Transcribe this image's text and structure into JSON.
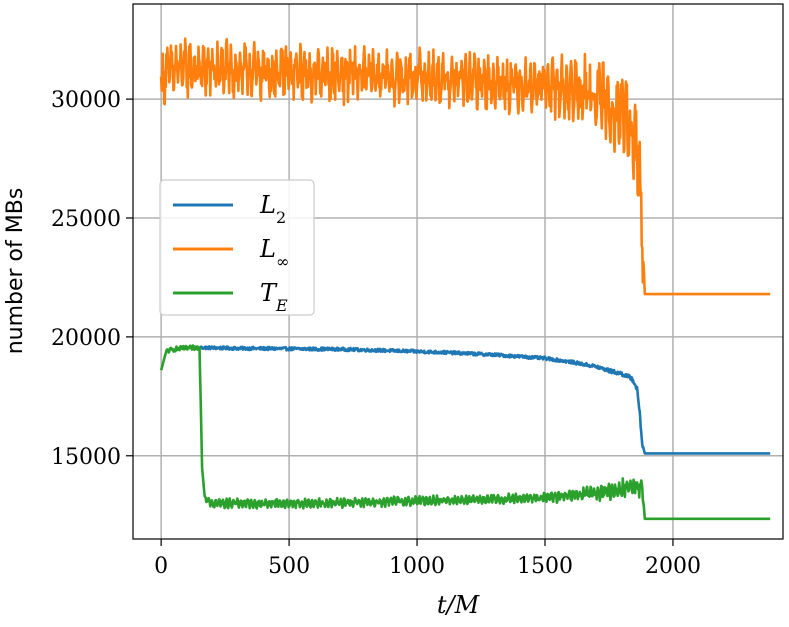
{
  "chart_data": {
    "type": "line",
    "title": "",
    "xlabel": "t/M",
    "ylabel": "number of MBs",
    "xlim": [
      -110,
      2430
    ],
    "ylim": [
      11500,
      34000
    ],
    "xticks": [
      0,
      500,
      1000,
      1500,
      2000
    ],
    "yticks": [
      15000,
      20000,
      25000,
      30000
    ],
    "x_tick_labels": [
      "0",
      "500",
      "1000",
      "1500",
      "2000"
    ],
    "y_tick_labels": [
      "15000",
      "20000",
      "25000",
      "30000"
    ],
    "grid": true,
    "legend_position": "center-left",
    "series": [
      {
        "name": "L2",
        "label_main": "L",
        "label_sub": "2",
        "color": "#1f77b4",
        "start_x": 150,
        "x": [
          150,
          300,
          500,
          700,
          900,
          1100,
          1300,
          1500,
          1600,
          1700,
          1760,
          1800,
          1840,
          1860,
          1870,
          1880,
          1890,
          2000,
          2380
        ],
        "values": [
          19550,
          19520,
          19500,
          19480,
          19420,
          19350,
          19250,
          19100,
          18950,
          18750,
          18550,
          18450,
          18250,
          17800,
          16800,
          15500,
          15100,
          15100,
          15100
        ],
        "noise_amplitude": 130
      },
      {
        "name": "L∞",
        "label_main": "L",
        "label_sub": "∞",
        "color": "#ff7f0e",
        "start_x": 0,
        "x": [
          0,
          20,
          100,
          300,
          500,
          700,
          900,
          1100,
          1300,
          1500,
          1600,
          1700,
          1780,
          1830,
          1860,
          1870,
          1880,
          1890,
          2000,
          2380
        ],
        "values": [
          30600,
          31200,
          31300,
          31200,
          31100,
          31050,
          30950,
          30850,
          30700,
          30550,
          30400,
          30100,
          29600,
          28800,
          27800,
          26500,
          24500,
          21800,
          21800,
          21800
        ],
        "noise_amplitude": 1000
      },
      {
        "name": "TE",
        "label_main": "T",
        "label_sub": "E",
        "color": "#2ca02c",
        "start_x": 0,
        "x": [
          0,
          20,
          60,
          150,
          155,
          160,
          170,
          200,
          400,
          600,
          800,
          1000,
          1200,
          1400,
          1500,
          1600,
          1700,
          1780,
          1830,
          1880,
          1890,
          2000,
          2380
        ],
        "values": [
          18600,
          19400,
          19500,
          19550,
          17000,
          14500,
          13300,
          13000,
          13000,
          13000,
          13050,
          13100,
          13150,
          13200,
          13250,
          13300,
          13450,
          13550,
          13700,
          13700,
          12350,
          12350,
          12350
        ],
        "noise_amplitude": 220
      }
    ]
  }
}
